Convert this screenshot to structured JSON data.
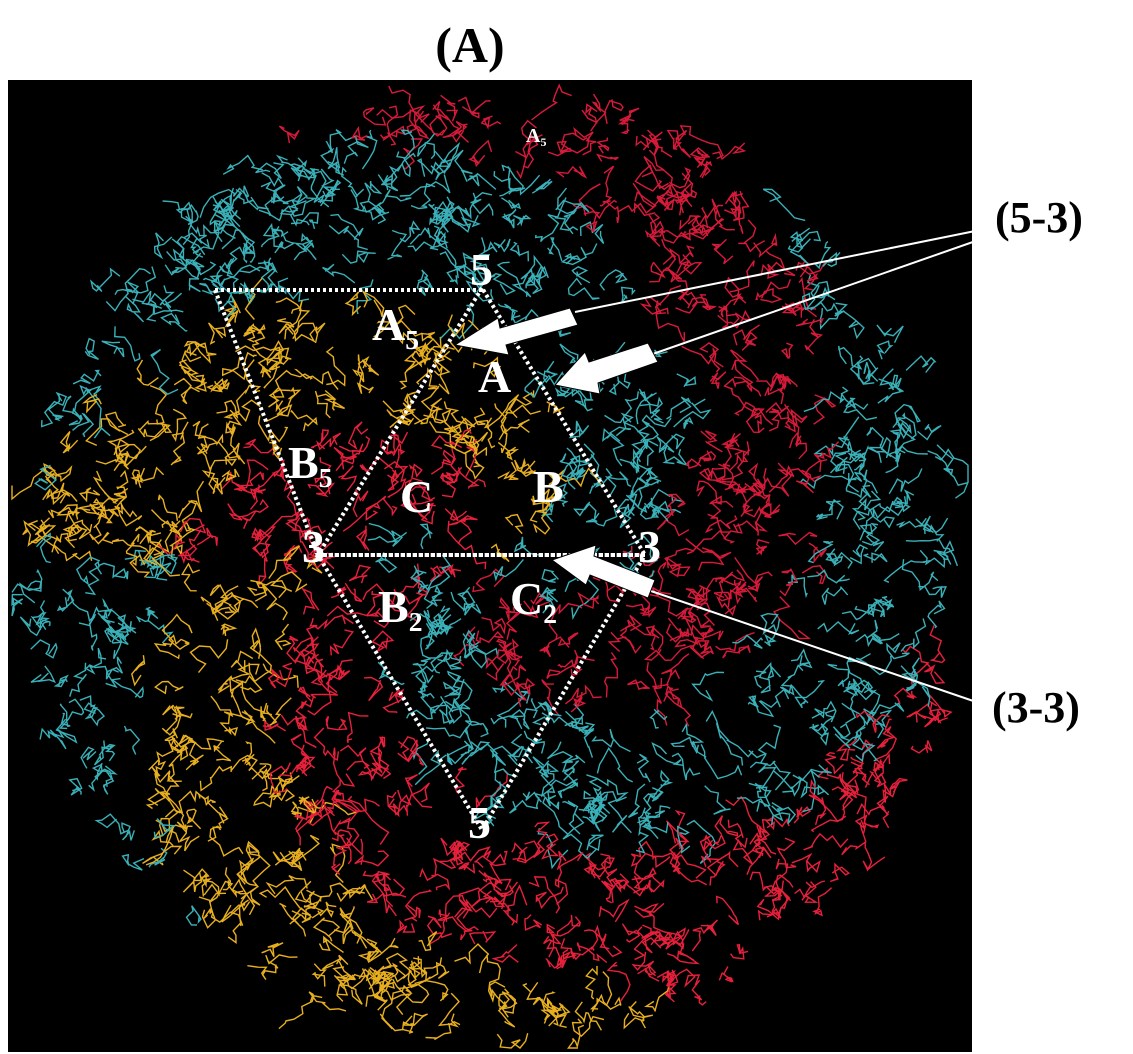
{
  "figure": {
    "panel_label": "(A)",
    "subunit_labels": [
      {
        "label": "A",
        "sub": "5"
      },
      {
        "label": "5"
      },
      {
        "label": "A",
        "sub": "5"
      },
      {
        "label": "A"
      },
      {
        "label": "B",
        "sub": "5"
      },
      {
        "label": "C"
      },
      {
        "label": "B"
      },
      {
        "label": "3"
      },
      {
        "label": "3"
      },
      {
        "label": "B",
        "sub": "2"
      },
      {
        "label": "C",
        "sub": "2"
      },
      {
        "label": "5"
      }
    ],
    "interface_labels": [
      "(5-3)",
      "(3-3)"
    ]
  }
}
